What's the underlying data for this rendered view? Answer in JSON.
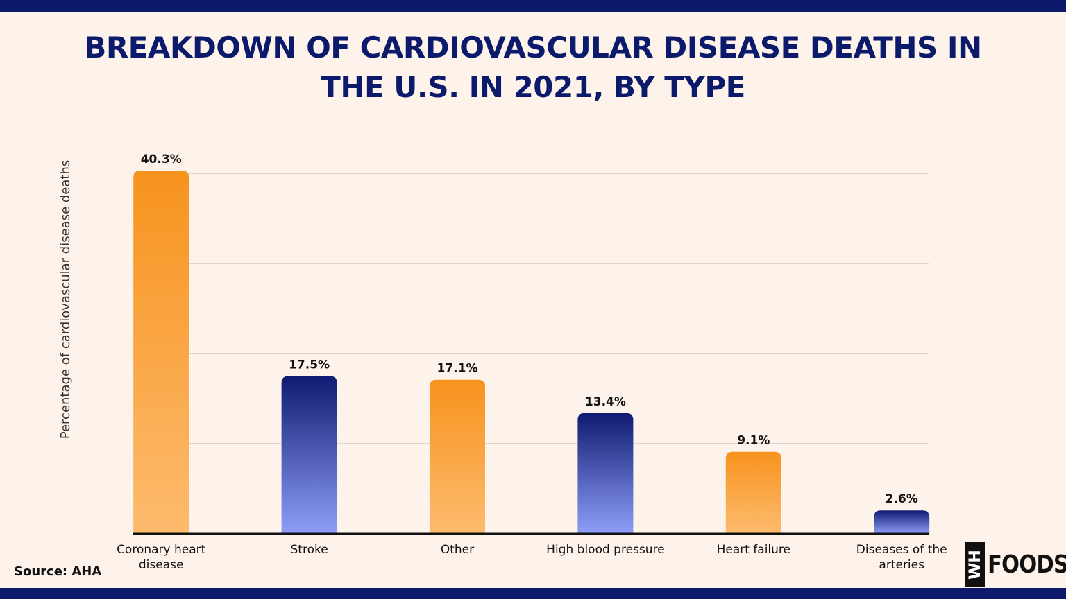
{
  "chart_data": {
    "type": "bar",
    "title": "BREAKDOWN OF CARDIOVASCULAR DISEASE DEATHS IN THE U.S. IN 2021, BY TYPE",
    "y_label": "Percentage of cardiovascular disease deaths",
    "categories": [
      "Coronary heart disease",
      "Stroke",
      "Other",
      "High blood pressure",
      "Heart failure",
      "Diseases of the arteries"
    ],
    "values": [
      40.3,
      17.5,
      17.1,
      13.4,
      9.1,
      2.6
    ],
    "value_labels": [
      "40.3%",
      "17.5%",
      "17.1%",
      "13.4%",
      "9.1%",
      "2.6%"
    ],
    "gradients": [
      [
        "#f7931e",
        "#fdbb6e"
      ],
      [
        "#0f1b72",
        "#8e9ef8"
      ],
      [
        "#f7931e",
        "#fdbb6e"
      ],
      [
        "#0f1b72",
        "#8e9ef8"
      ],
      [
        "#f7931e",
        "#fdbb6e"
      ],
      [
        "#0f1b72",
        "#8e9ef8"
      ]
    ],
    "ylim": [
      0,
      40
    ],
    "yticks": [
      0,
      10,
      20,
      30,
      40
    ],
    "show_ytick_labels": false,
    "grid": true,
    "source": "Source: AHA",
    "logo": {
      "mark": "WH",
      "text": "FOODS"
    }
  }
}
